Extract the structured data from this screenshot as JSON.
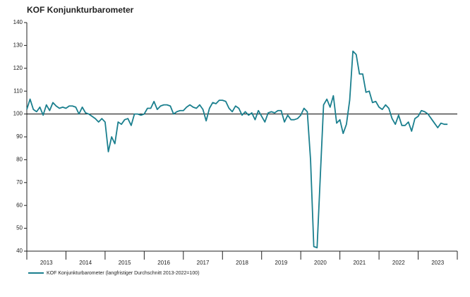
{
  "chart_data": {
    "type": "line",
    "title": "KOF Konjunkturbarometer",
    "x": [
      2013,
      2013.083,
      2013.167,
      2013.25,
      2013.333,
      2013.417,
      2013.5,
      2013.583,
      2013.667,
      2013.75,
      2013.833,
      2013.917,
      2014,
      2014.083,
      2014.167,
      2014.25,
      2014.333,
      2014.417,
      2014.5,
      2014.583,
      2014.667,
      2014.75,
      2014.833,
      2014.917,
      2015,
      2015.083,
      2015.167,
      2015.25,
      2015.333,
      2015.417,
      2015.5,
      2015.583,
      2015.667,
      2015.75,
      2015.833,
      2015.917,
      2016,
      2016.083,
      2016.167,
      2016.25,
      2016.333,
      2016.417,
      2016.5,
      2016.583,
      2016.667,
      2016.75,
      2016.833,
      2016.917,
      2017,
      2017.083,
      2017.167,
      2017.25,
      2017.333,
      2017.417,
      2017.5,
      2017.583,
      2017.667,
      2017.75,
      2017.833,
      2017.917,
      2018,
      2018.083,
      2018.167,
      2018.25,
      2018.333,
      2018.417,
      2018.5,
      2018.583,
      2018.667,
      2018.75,
      2018.833,
      2018.917,
      2019,
      2019.083,
      2019.167,
      2019.25,
      2019.333,
      2019.417,
      2019.5,
      2019.583,
      2019.667,
      2019.75,
      2019.833,
      2019.917,
      2020,
      2020.083,
      2020.167,
      2020.25,
      2020.333,
      2020.417,
      2020.5,
      2020.583,
      2020.667,
      2020.75,
      2020.833,
      2020.917,
      2021,
      2021.083,
      2021.167,
      2021.25,
      2021.333,
      2021.417,
      2021.5,
      2021.583,
      2021.667,
      2021.75,
      2021.833,
      2021.917,
      2022,
      2022.083,
      2022.167,
      2022.25,
      2022.333,
      2022.417,
      2022.5,
      2022.583,
      2022.667,
      2022.75,
      2022.833,
      2022.917,
      2023,
      2023.083,
      2023.167,
      2023.25,
      2023.333,
      2023.417,
      2023.5,
      2023.583,
      2023.667,
      2023.75
    ],
    "series": [
      {
        "name": "KOF Konjunkturbarometer (langfristiger Durchschnitt 2013-2022=100)",
        "color": "#1a7f8e",
        "values": [
          102,
          106.5,
          102,
          101,
          103,
          99.5,
          104,
          101.5,
          105,
          103.5,
          102.5,
          103,
          102.5,
          103.5,
          103.5,
          103,
          100,
          103,
          100.5,
          100,
          99,
          98,
          96.5,
          98,
          96.5,
          83.5,
          90,
          87,
          96.5,
          95.5,
          97.5,
          98,
          95,
          100,
          100,
          99.5,
          100,
          102.5,
          102.5,
          105.5,
          102,
          103.5,
          104,
          104,
          103.5,
          100,
          101,
          101.5,
          101.5,
          103,
          104,
          103,
          102.5,
          104,
          102,
          97,
          102.5,
          105,
          104.5,
          106,
          106,
          105.5,
          102.5,
          101,
          103.5,
          102.5,
          99.5,
          101,
          99.5,
          100.5,
          97.5,
          101.5,
          99,
          96.5,
          100.5,
          101,
          100.5,
          101.5,
          101.5,
          96.5,
          99.5,
          97.5,
          97.5,
          98,
          99.5,
          102.5,
          101,
          80,
          42,
          41.5,
          73,
          104,
          106.5,
          103,
          108,
          96,
          97.5,
          91.5,
          95.5,
          106,
          127.5,
          126,
          117.5,
          117.5,
          109.5,
          110,
          105,
          105.5,
          103,
          102,
          104,
          102.5,
          98,
          95.5,
          99.5,
          95,
          95,
          96.5,
          92.5,
          98,
          99,
          101.5,
          101,
          100,
          98,
          96,
          94,
          96,
          95.5,
          95.5
        ]
      }
    ],
    "xlim": [
      2013,
      2024
    ],
    "xticks": [
      2013,
      2014,
      2015,
      2016,
      2017,
      2018,
      2019,
      2020,
      2021,
      2022,
      2023
    ],
    "ylim": [
      40,
      140
    ],
    "yticks": [
      40,
      50,
      60,
      70,
      80,
      90,
      100,
      110,
      120,
      130,
      140
    ],
    "reference_line": 100,
    "grid": false,
    "legend": "bottom"
  }
}
